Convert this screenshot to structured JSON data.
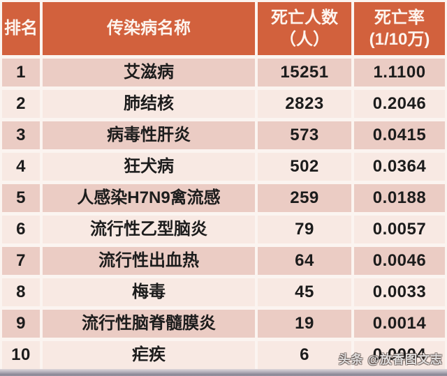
{
  "chart_data": {
    "type": "table",
    "header": {
      "rank": "排名",
      "name": "传染病名称",
      "deaths_line1": "死亡人数",
      "deaths_line2": "（人）",
      "rate_line1": "死亡率",
      "rate_line2": "(1/10万)"
    },
    "columns": [
      "排名",
      "传染病名称",
      "死亡人数（人）",
      "死亡率(1/10万)"
    ],
    "rows": [
      {
        "rank": "1",
        "name": "艾滋病",
        "deaths": "15251",
        "rate": "1.1100"
      },
      {
        "rank": "2",
        "name": "肺结核",
        "deaths": "2823",
        "rate": "0.2046"
      },
      {
        "rank": "3",
        "name": "病毒性肝炎",
        "deaths": "573",
        "rate": "0.0415"
      },
      {
        "rank": "4",
        "name": "狂犬病",
        "deaths": "502",
        "rate": "0.0364"
      },
      {
        "rank": "5",
        "name": "人感染H7N9禽流感",
        "deaths": "259",
        "rate": "0.0188"
      },
      {
        "rank": "6",
        "name": "流行性乙型脑炎",
        "deaths": "79",
        "rate": "0.0057"
      },
      {
        "rank": "7",
        "name": "流行性出血热",
        "deaths": "64",
        "rate": "0.0046"
      },
      {
        "rank": "8",
        "name": "梅毒",
        "deaths": "45",
        "rate": "0.0033"
      },
      {
        "rank": "9",
        "name": "流行性脑脊髓膜炎",
        "deaths": "19",
        "rate": "0.0014"
      },
      {
        "rank": "10",
        "name": "疟疾",
        "deaths": "6",
        "rate": "0.0004"
      }
    ]
  },
  "watermark": {
    "text": "头条 @放香图文志"
  },
  "colors": {
    "header_bg": "#d2613d",
    "header_text": "#fdf4ee",
    "row_odd_bg": "#ebccc4",
    "row_even_bg": "#f8e9e3",
    "gap_bg": "#fbf4f0",
    "cell_text": "#1c1c1c",
    "strip_top": "#ddd7da",
    "strip_bottom": "#8a8795"
  }
}
